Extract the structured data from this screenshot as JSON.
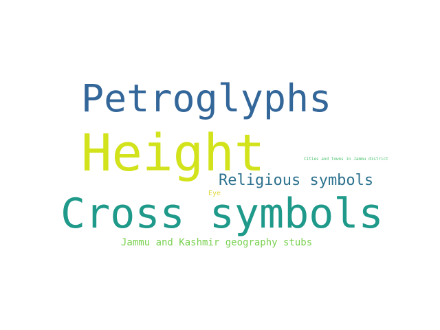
{
  "word_cloud": {
    "words": [
      {
        "id": "petroglyphs",
        "text": "Petroglyphs",
        "color": "#336699"
      },
      {
        "id": "height",
        "text": "Height",
        "color": "#d2e21b"
      },
      {
        "id": "religious",
        "text": "Religious symbols",
        "color": "#2c718e"
      },
      {
        "id": "cross",
        "text": "Cross symbols",
        "color": "#1f9a8a"
      },
      {
        "id": "jk_stubs",
        "text": "Jammu and Kashmir geography stubs",
        "color": "#7ad151"
      },
      {
        "id": "eye",
        "text": "Eye",
        "color": "#e0d63a"
      },
      {
        "id": "cities",
        "text": "Cities and towns in Jammu district",
        "color": "#4ac16d"
      }
    ]
  }
}
